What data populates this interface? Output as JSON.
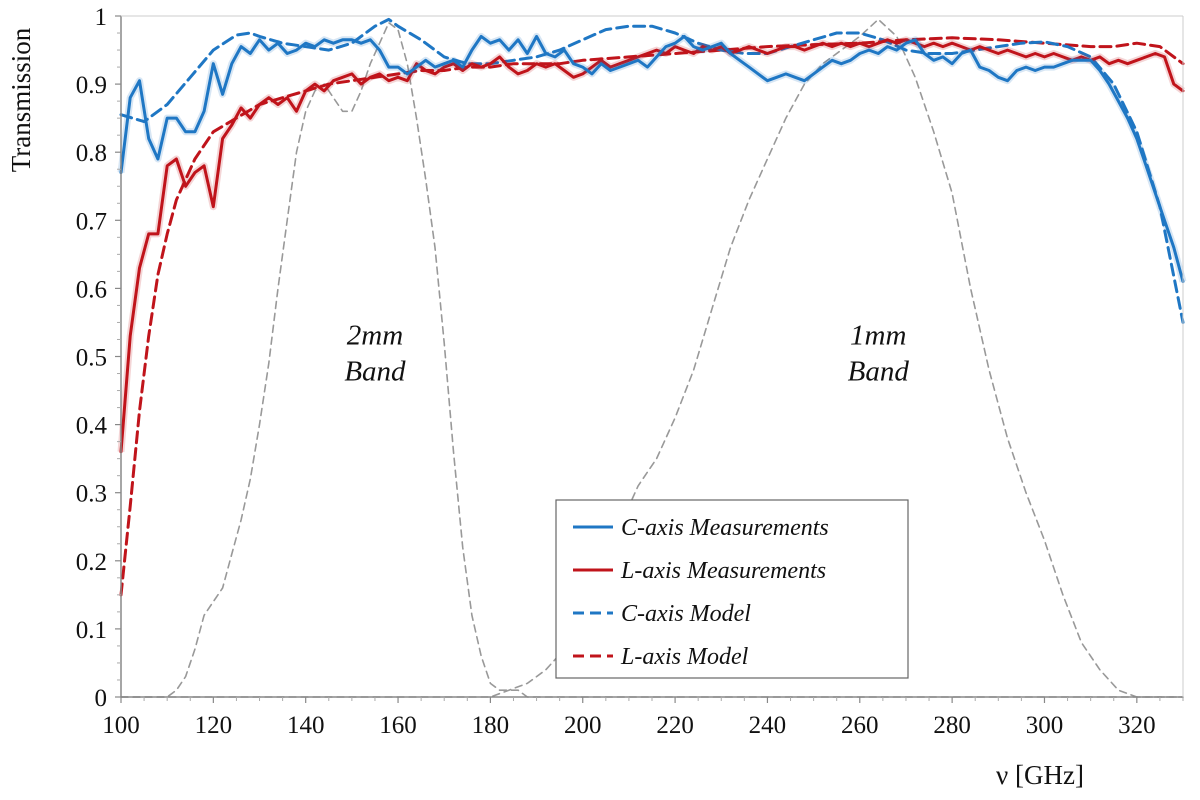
{
  "chart_data": {
    "type": "line",
    "xlabel": "ν [GHz]",
    "ylabel": "Transmission",
    "xlim": [
      100,
      330
    ],
    "ylim": [
      0,
      1
    ],
    "xticks": [
      "100",
      "120",
      "140",
      "160",
      "180",
      "200",
      "220",
      "240",
      "260",
      "280",
      "300",
      "320"
    ],
    "yticks": [
      "0",
      "0.1",
      "0.2",
      "0.3",
      "0.4",
      "0.5",
      "0.6",
      "0.7",
      "0.8",
      "0.9",
      "1"
    ],
    "grid": "none",
    "legend_position": "lower-right",
    "annotations": [
      {
        "lines": [
          "2mm",
          "Band"
        ],
        "x": 155,
        "y": 0.5
      },
      {
        "lines": [
          "1mm",
          "Band"
        ],
        "x": 264,
        "y": 0.5
      }
    ],
    "series": [
      {
        "name": "C-axis Measurements",
        "color": "#1f77c4",
        "style": "solid",
        "x": [
          100,
          102,
          104,
          106,
          108,
          110,
          112,
          114,
          116,
          118,
          120,
          122,
          124,
          126,
          128,
          130,
          132,
          134,
          136,
          138,
          140,
          142,
          144,
          146,
          148,
          150,
          152,
          154,
          156,
          158,
          160,
          162,
          164,
          166,
          168,
          170,
          172,
          174,
          176,
          178,
          180,
          182,
          184,
          186,
          188,
          190,
          192,
          194,
          196,
          198,
          200,
          202,
          204,
          206,
          208,
          210,
          212,
          214,
          216,
          218,
          220,
          222,
          224,
          226,
          228,
          230,
          232,
          234,
          236,
          238,
          240,
          242,
          244,
          246,
          248,
          250,
          252,
          254,
          256,
          258,
          260,
          262,
          264,
          266,
          268,
          270,
          272,
          274,
          276,
          278,
          280,
          282,
          284,
          286,
          288,
          290,
          292,
          294,
          296,
          298,
          300,
          302,
          304,
          306,
          308,
          310,
          312,
          314,
          316,
          318,
          320,
          322,
          324,
          326,
          328,
          330
        ],
        "y": [
          0.77,
          0.88,
          0.905,
          0.82,
          0.79,
          0.85,
          0.85,
          0.83,
          0.83,
          0.86,
          0.93,
          0.885,
          0.93,
          0.955,
          0.945,
          0.965,
          0.95,
          0.96,
          0.945,
          0.95,
          0.96,
          0.955,
          0.965,
          0.96,
          0.965,
          0.965,
          0.96,
          0.965,
          0.95,
          0.925,
          0.925,
          0.915,
          0.925,
          0.935,
          0.925,
          0.93,
          0.935,
          0.925,
          0.95,
          0.97,
          0.96,
          0.965,
          0.95,
          0.965,
          0.945,
          0.97,
          0.945,
          0.94,
          0.95,
          0.93,
          0.925,
          0.915,
          0.93,
          0.92,
          0.925,
          0.93,
          0.935,
          0.925,
          0.94,
          0.955,
          0.96,
          0.97,
          0.955,
          0.95,
          0.955,
          0.96,
          0.945,
          0.935,
          0.925,
          0.915,
          0.905,
          0.91,
          0.915,
          0.91,
          0.905,
          0.915,
          0.925,
          0.935,
          0.93,
          0.935,
          0.945,
          0.95,
          0.945,
          0.955,
          0.95,
          0.96,
          0.965,
          0.945,
          0.935,
          0.94,
          0.93,
          0.945,
          0.95,
          0.925,
          0.92,
          0.91,
          0.905,
          0.92,
          0.925,
          0.92,
          0.925,
          0.925,
          0.93,
          0.935,
          0.935,
          0.935,
          0.92,
          0.9,
          0.875,
          0.85,
          0.82,
          0.78,
          0.74,
          0.7,
          0.66,
          0.61
        ]
      },
      {
        "name": "L-axis Measurements",
        "color": "#c0141b",
        "style": "solid",
        "x": [
          100,
          102,
          104,
          106,
          108,
          110,
          112,
          114,
          116,
          118,
          120,
          122,
          124,
          126,
          128,
          130,
          132,
          134,
          136,
          138,
          140,
          142,
          144,
          146,
          148,
          150,
          152,
          154,
          156,
          158,
          160,
          162,
          164,
          166,
          168,
          170,
          172,
          174,
          176,
          178,
          180,
          182,
          184,
          186,
          188,
          190,
          192,
          194,
          196,
          198,
          200,
          202,
          204,
          206,
          208,
          210,
          212,
          214,
          216,
          218,
          220,
          222,
          224,
          226,
          228,
          230,
          232,
          234,
          236,
          238,
          240,
          242,
          244,
          246,
          248,
          250,
          252,
          254,
          256,
          258,
          260,
          262,
          264,
          266,
          268,
          270,
          272,
          274,
          276,
          278,
          280,
          282,
          284,
          286,
          288,
          290,
          292,
          294,
          296,
          298,
          300,
          302,
          304,
          306,
          308,
          310,
          312,
          314,
          316,
          318,
          320,
          322,
          324,
          326,
          328,
          330
        ],
        "y": [
          0.36,
          0.53,
          0.63,
          0.68,
          0.68,
          0.78,
          0.79,
          0.75,
          0.77,
          0.78,
          0.72,
          0.82,
          0.84,
          0.865,
          0.85,
          0.87,
          0.88,
          0.87,
          0.88,
          0.86,
          0.89,
          0.9,
          0.89,
          0.905,
          0.91,
          0.915,
          0.9,
          0.91,
          0.915,
          0.905,
          0.91,
          0.905,
          0.93,
          0.92,
          0.915,
          0.925,
          0.93,
          0.92,
          0.93,
          0.925,
          0.93,
          0.94,
          0.925,
          0.915,
          0.92,
          0.93,
          0.925,
          0.93,
          0.92,
          0.91,
          0.915,
          0.925,
          0.935,
          0.925,
          0.93,
          0.935,
          0.94,
          0.945,
          0.95,
          0.945,
          0.955,
          0.95,
          0.945,
          0.955,
          0.95,
          0.955,
          0.945,
          0.95,
          0.955,
          0.95,
          0.945,
          0.95,
          0.955,
          0.955,
          0.95,
          0.955,
          0.96,
          0.955,
          0.96,
          0.955,
          0.96,
          0.955,
          0.96,
          0.965,
          0.96,
          0.965,
          0.96,
          0.955,
          0.96,
          0.955,
          0.96,
          0.955,
          0.95,
          0.955,
          0.95,
          0.945,
          0.95,
          0.945,
          0.94,
          0.945,
          0.94,
          0.945,
          0.94,
          0.935,
          0.94,
          0.935,
          0.94,
          0.93,
          0.935,
          0.93,
          0.935,
          0.94,
          0.945,
          0.94,
          0.9,
          0.89
        ]
      },
      {
        "name": "C-axis Model",
        "color": "#1f77c4",
        "style": "dashed",
        "x": [
          100,
          105,
          110,
          115,
          120,
          125,
          128,
          130,
          135,
          140,
          145,
          150,
          155,
          158,
          160,
          165,
          170,
          175,
          180,
          185,
          190,
          195,
          200,
          205,
          210,
          215,
          220,
          225,
          230,
          235,
          240,
          245,
          250,
          255,
          260,
          265,
          270,
          275,
          280,
          285,
          290,
          295,
          300,
          305,
          310,
          315,
          320,
          325,
          330
        ],
        "y": [
          0.855,
          0.845,
          0.87,
          0.91,
          0.95,
          0.972,
          0.975,
          0.97,
          0.96,
          0.955,
          0.95,
          0.96,
          0.985,
          0.995,
          0.985,
          0.965,
          0.94,
          0.93,
          0.93,
          0.935,
          0.94,
          0.95,
          0.965,
          0.98,
          0.985,
          0.985,
          0.975,
          0.96,
          0.95,
          0.945,
          0.945,
          0.955,
          0.965,
          0.975,
          0.975,
          0.965,
          0.95,
          0.945,
          0.945,
          0.95,
          0.955,
          0.96,
          0.962,
          0.955,
          0.94,
          0.9,
          0.83,
          0.72,
          0.55
        ]
      },
      {
        "name": "L-axis Model",
        "color": "#c0141b",
        "style": "dashed",
        "x": [
          100,
          102,
          104,
          106,
          108,
          110,
          112,
          114,
          116,
          118,
          120,
          125,
          130,
          135,
          140,
          145,
          150,
          155,
          160,
          165,
          170,
          175,
          180,
          185,
          190,
          195,
          200,
          210,
          220,
          230,
          240,
          250,
          260,
          270,
          280,
          290,
          300,
          310,
          315,
          320,
          325,
          330
        ],
        "y": [
          0.15,
          0.28,
          0.42,
          0.53,
          0.62,
          0.68,
          0.73,
          0.76,
          0.79,
          0.81,
          0.83,
          0.85,
          0.87,
          0.88,
          0.89,
          0.9,
          0.905,
          0.91,
          0.915,
          0.92,
          0.92,
          0.925,
          0.925,
          0.93,
          0.93,
          0.93,
          0.935,
          0.94,
          0.945,
          0.95,
          0.955,
          0.958,
          0.96,
          0.965,
          0.968,
          0.965,
          0.96,
          0.955,
          0.955,
          0.96,
          0.955,
          0.93
        ]
      },
      {
        "name": "",
        "color": "#999999",
        "style": "dashed",
        "x": [
          100,
          105,
          110,
          112,
          114,
          116,
          118,
          120,
          122,
          124,
          126,
          128,
          130,
          132,
          134,
          136,
          138,
          140,
          142,
          144,
          146,
          148,
          150,
          152,
          154,
          156,
          158,
          160,
          162,
          164,
          166,
          168,
          170,
          172,
          174,
          176,
          178,
          180,
          182,
          184,
          186,
          188,
          190,
          330
        ],
        "y": [
          0,
          0,
          0,
          0.01,
          0.03,
          0.07,
          0.12,
          0.14,
          0.16,
          0.21,
          0.26,
          0.32,
          0.4,
          0.49,
          0.6,
          0.7,
          0.8,
          0.86,
          0.89,
          0.9,
          0.88,
          0.86,
          0.86,
          0.89,
          0.93,
          0.96,
          0.99,
          0.98,
          0.93,
          0.85,
          0.76,
          0.66,
          0.52,
          0.36,
          0.22,
          0.12,
          0.06,
          0.02,
          0.01,
          0.01,
          0.01,
          0,
          0,
          0
        ]
      },
      {
        "name": "",
        "color": "#999999",
        "style": "dashed",
        "x": [
          100,
          180,
          184,
          188,
          192,
          196,
          200,
          204,
          208,
          212,
          216,
          220,
          224,
          228,
          232,
          236,
          240,
          244,
          248,
          252,
          256,
          260,
          264,
          268,
          272,
          276,
          280,
          284,
          288,
          292,
          296,
          300,
          304,
          308,
          312,
          316,
          320,
          324,
          328,
          330
        ],
        "y": [
          0,
          0,
          0.01,
          0.02,
          0.04,
          0.07,
          0.12,
          0.18,
          0.25,
          0.31,
          0.35,
          0.41,
          0.48,
          0.57,
          0.66,
          0.73,
          0.79,
          0.85,
          0.9,
          0.93,
          0.95,
          0.97,
          0.995,
          0.97,
          0.91,
          0.83,
          0.74,
          0.6,
          0.48,
          0.38,
          0.3,
          0.23,
          0.15,
          0.08,
          0.04,
          0.01,
          0,
          0,
          0,
          0
        ]
      }
    ]
  }
}
